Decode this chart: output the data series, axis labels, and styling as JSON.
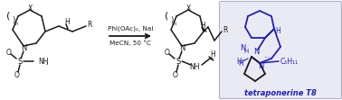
{
  "bg_color": "#ffffff",
  "box_color": "#eaeaf5",
  "box_edge_color": "#b0b0cc",
  "title_text": "tetraponerine T8",
  "reagents_line1": "PhI(OAc)₂, NaI",
  "reagents_line2": "MeCN, 50 °C",
  "blue": "#2222aa",
  "black": "#1a1a1a",
  "figw": 3.78,
  "figh": 1.11,
  "dpi": 100,
  "lw": 1.1
}
